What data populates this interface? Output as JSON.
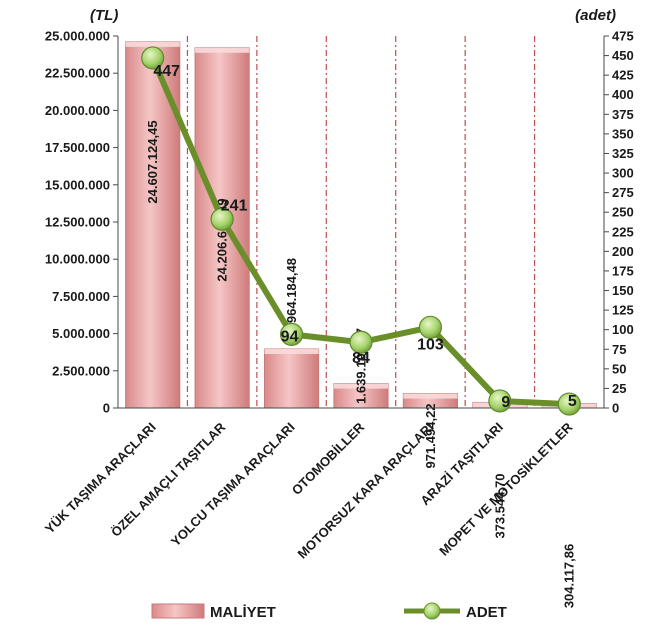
{
  "chart_data": {
    "type": "bar",
    "categories": [
      "YÜK TAŞIMA ARAÇLARI",
      "ÖZEL AMAÇLI TAŞITLAR",
      "YOLCU TAŞIMA ARAÇLARI",
      "OTOMOBİLLER",
      "MOTORSUZ KARA ARAÇLARI",
      "ARAZİ TAŞITLARI",
      "MOPET VE MOTOSİKLETLER"
    ],
    "series": [
      {
        "name": "MALİYET",
        "type": "bar",
        "axis": "left",
        "color": "#e89a9a",
        "values": [
          24607124.45,
          24206694.49,
          3964184.48,
          1639195.97,
          971494.22,
          373544.7,
          304117.86
        ],
        "labels": [
          "24.607.124,45",
          "24.206.694,49",
          "3.964.184,48",
          "1.639.195,97",
          "971.494,22",
          "373.544,70",
          "304.117,86"
        ]
      },
      {
        "name": "ADET",
        "type": "line",
        "axis": "right",
        "color": "#6a8f2a",
        "marker_color": "#a6d36a",
        "values": [
          447,
          241,
          94,
          84,
          103,
          9,
          5
        ],
        "labels": [
          "447",
          "241",
          "94",
          "84",
          "103",
          "9",
          "5"
        ]
      }
    ],
    "y_left": {
      "unit": "(TL)",
      "ylim": [
        0,
        25000000
      ],
      "ticks": [
        "0",
        "2.500.000",
        "5.000.000",
        "7.500.000",
        "10.000.000",
        "12.500.000",
        "15.000.000",
        "17.500.000",
        "20.000.000",
        "22.500.000",
        "25.000.000"
      ]
    },
    "y_right": {
      "unit": "(adet)",
      "ylim": [
        0,
        475
      ],
      "ticks": [
        "0",
        "25",
        "50",
        "75",
        "100",
        "125",
        "150",
        "175",
        "200",
        "225",
        "250",
        "275",
        "300",
        "325",
        "350",
        "375",
        "400",
        "425",
        "450",
        "475"
      ]
    },
    "grid": "vertical dash-dot separators",
    "legend": "bottom"
  }
}
